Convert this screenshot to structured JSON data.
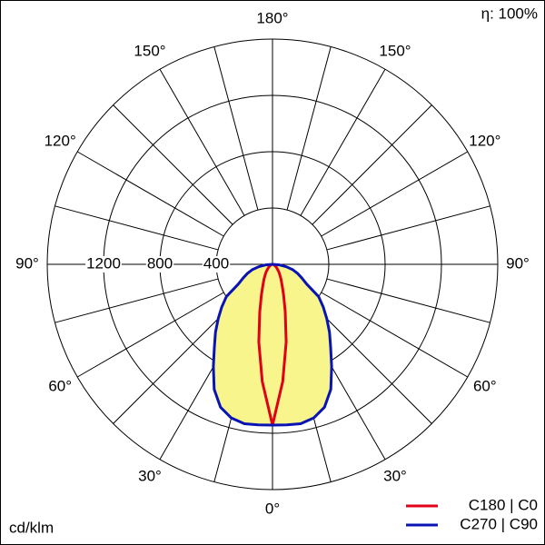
{
  "chart_data": {
    "type": "polar",
    "annotations": {
      "efficiency": "η: 100%",
      "unit": "cd/klm"
    },
    "angles": [
      0,
      5,
      10,
      15,
      20,
      25,
      30,
      35,
      40,
      45,
      50,
      55,
      60,
      65,
      70,
      75,
      80,
      85,
      90
    ],
    "series": [
      {
        "name": "C180 | C0",
        "color": "#e0001a",
        "fill": null,
        "values": [
          1142,
          835,
          560,
          350,
          230,
          160,
          120,
          90,
          70,
          50,
          40,
          30,
          20,
          15,
          10,
          6,
          4,
          2,
          0
        ]
      },
      {
        "name": "C270 | C90",
        "color": "#0a14b4",
        "fill": "#f7f58c",
        "values": [
          1142,
          1145,
          1150,
          1130,
          1080,
          980,
          840,
          720,
          630,
          545,
          470,
          400,
          280,
          230,
          190,
          150,
          100,
          50,
          0
        ]
      }
    ],
    "rlim": [
      0,
      1600
    ],
    "rticks": [
      400,
      800,
      1200
    ],
    "angle_grid": [
      0,
      15,
      30,
      45,
      60,
      75,
      90,
      105,
      120,
      135,
      150,
      165,
      180
    ],
    "angle_ticks": [
      {
        "value": 0,
        "label": "0°"
      },
      {
        "value": 30,
        "label": "30°"
      },
      {
        "value": 60,
        "label": "60°"
      },
      {
        "value": 90,
        "label": "90°"
      },
      {
        "value": 120,
        "label": "120°"
      },
      {
        "value": 150,
        "label": "150°"
      },
      {
        "value": 180,
        "label": "180°"
      }
    ],
    "legend": "bottom-right"
  }
}
